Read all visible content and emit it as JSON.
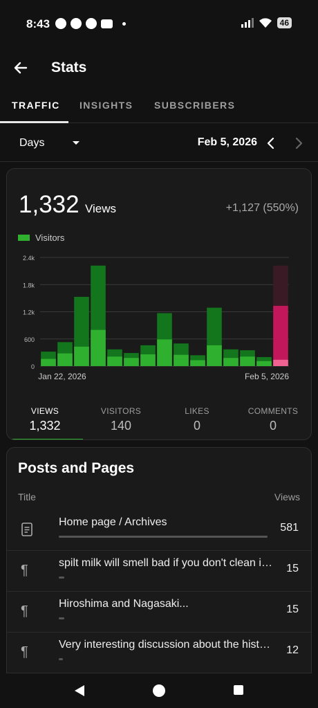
{
  "status": {
    "time": "8:43",
    "battery": "46"
  },
  "app": {
    "title": "Stats"
  },
  "tabs": [
    {
      "label": "TRAFFIC",
      "active": true
    },
    {
      "label": "INSIGHTS",
      "active": false
    },
    {
      "label": "SUBSCRIBERS",
      "active": false
    }
  ],
  "period": {
    "selected": "Days",
    "date": "Feb 5, 2026"
  },
  "summary": {
    "views": "1,332",
    "views_word": "Views",
    "delta": "+1,127 (550%)",
    "legend": "Visitors"
  },
  "chart_data": {
    "type": "bar",
    "x_start_label": "Jan 22, 2026",
    "x_end_label": "Feb 5, 2026",
    "y_ticks": [
      "0",
      "600",
      "1.2k",
      "1.8k",
      "2.4k"
    ],
    "ylim": [
      0,
      2400
    ],
    "series": [
      {
        "name": "Views",
        "values": [
          320,
          530,
          1530,
          2220,
          370,
          290,
          460,
          1170,
          500,
          240,
          1290,
          370,
          350,
          200,
          1332
        ]
      },
      {
        "name": "Visitors",
        "values": [
          160,
          280,
          430,
          800,
          210,
          180,
          260,
          590,
          250,
          130,
          460,
          180,
          210,
          110,
          140
        ]
      }
    ],
    "highlight_last": true,
    "highlight_total": 2220,
    "colors": {
      "views": "#13751c",
      "visitors": "#2fb12f",
      "sel_views": "#c2185b",
      "sel_visitors": "#f06292",
      "sel_bg": "#3a1a24"
    }
  },
  "metrics": [
    {
      "label": "VIEWS",
      "value": "1,332",
      "active": true
    },
    {
      "label": "VISITORS",
      "value": "140",
      "active": false
    },
    {
      "label": "LIKES",
      "value": "0",
      "active": false
    },
    {
      "label": "COMMENTS",
      "value": "0",
      "active": false
    }
  ],
  "posts": {
    "title": "Posts and Pages",
    "col_title": "Title",
    "col_views": "Views",
    "items": [
      {
        "icon": "page-icon",
        "title": "Home page / Archives",
        "views": "581",
        "fraction": 1.0
      },
      {
        "icon": "paragraph-icon",
        "title": "spilt milk will smell bad if you don't clean it up",
        "views": "15",
        "fraction": 0.026
      },
      {
        "icon": "paragraph-icon",
        "title": "Hiroshima and Nagasaki...",
        "views": "15",
        "fraction": 0.026
      },
      {
        "icon": "paragraph-icon",
        "title": "Very interesting discussion about the history",
        "views": "12",
        "fraction": 0.021
      }
    ]
  }
}
